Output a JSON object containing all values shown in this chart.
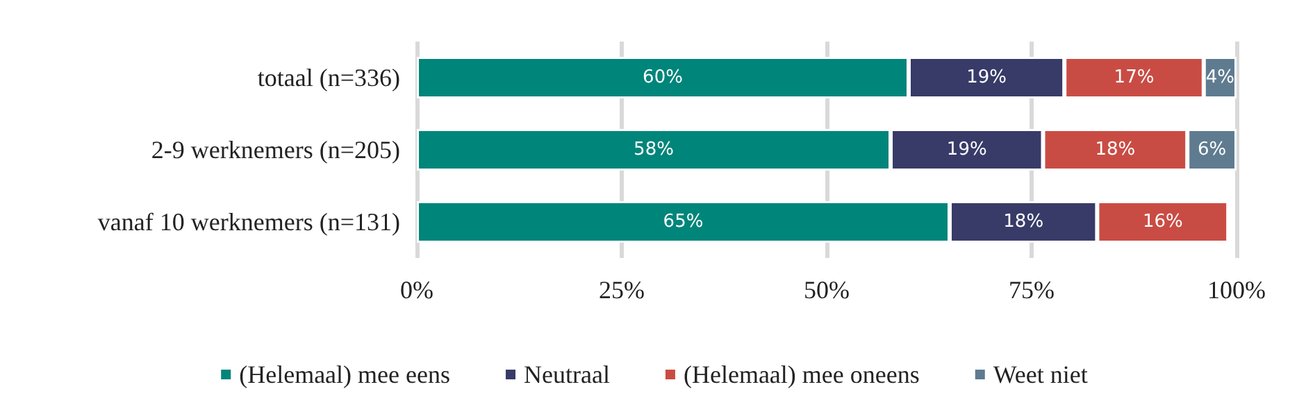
{
  "chart_data": {
    "type": "bar",
    "orientation": "horizontal",
    "stacked": true,
    "categories": [
      "totaal (n=336)",
      "2-9 werknemers (n=205)",
      "vanaf 10 werknemers (n=131)"
    ],
    "series": [
      {
        "name": "(Helemaal) mee eens",
        "color": "#00857a",
        "values": [
          60,
          57.8,
          65
        ],
        "value_labels": [
          "60%",
          "58%",
          "65%"
        ]
      },
      {
        "name": "Neutraal",
        "color": "#383b68",
        "values": [
          19,
          18.6,
          18
        ],
        "value_labels": [
          "19%",
          "19%",
          "18%"
        ]
      },
      {
        "name": "(Helemaal) mee oneens",
        "color": "#c94c44",
        "values": [
          17,
          17.6,
          16
        ],
        "value_labels": [
          "17%",
          "18%",
          "16%"
        ]
      },
      {
        "name": "Weet niet",
        "color": "#5f7b90",
        "values": [
          4,
          6,
          null
        ],
        "value_labels": [
          "4%",
          "6%",
          null
        ]
      }
    ],
    "xlim": [
      0,
      100
    ],
    "xticks": [
      {
        "value": 0,
        "label": "0%"
      },
      {
        "value": 25,
        "label": "25%"
      },
      {
        "value": 50,
        "label": "50%"
      },
      {
        "value": 75,
        "label": "75%"
      },
      {
        "value": 100,
        "label": "100%"
      }
    ],
    "grid": "x",
    "legend": "bottom"
  }
}
